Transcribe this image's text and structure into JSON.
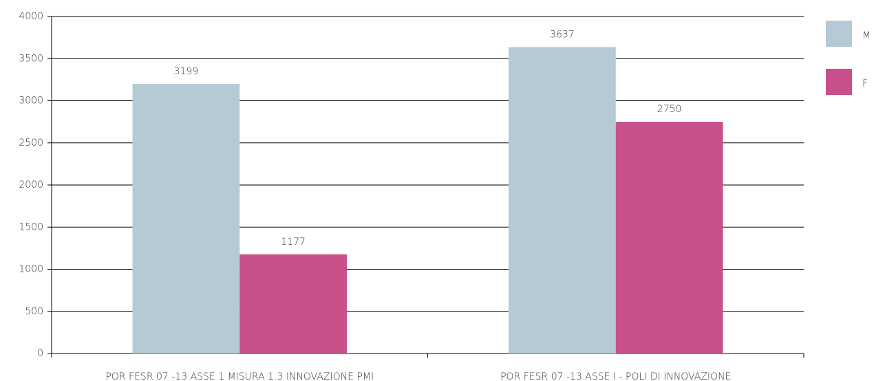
{
  "chart_data": {
    "type": "bar",
    "categories": [
      "POR FESR 07 -13 ASSE 1 MISURA 1.3 INNOVAZIONE PMI",
      "POR FESR 07 -13 ASSE I - POLI DI INNOVAZIONE"
    ],
    "series": [
      {
        "name": "M",
        "color": "#b5cad4",
        "values": [
          3199,
          3637
        ]
      },
      {
        "name": "F",
        "color": "#c9508b",
        "values": [
          1177,
          2750
        ]
      }
    ],
    "ylim": [
      0,
      4000
    ],
    "yticks": [
      0,
      500,
      1000,
      1500,
      2000,
      2500,
      3000,
      3500,
      4000
    ],
    "grid": true,
    "legend": "right"
  }
}
